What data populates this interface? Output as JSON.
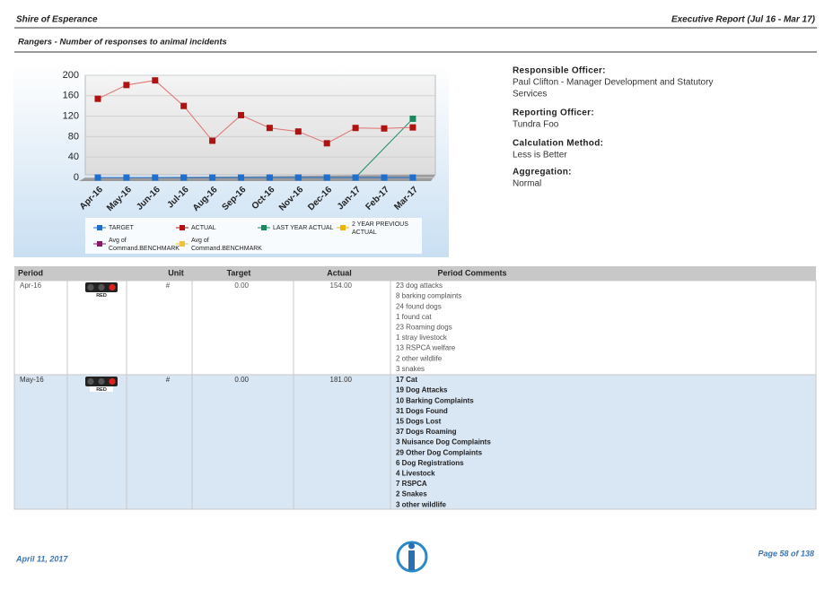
{
  "header": {
    "org": "Shire of Esperance",
    "report": "Executive Report (Jul 16 - Mar 17)",
    "title": "Rangers - Number of responses to animal incidents"
  },
  "chart_data": {
    "type": "line",
    "categories": [
      "Apr-16",
      "May-16",
      "Jun-16",
      "Jul-16",
      "Aug-16",
      "Sep-16",
      "Oct-16",
      "Nov-16",
      "Dec-16",
      "Jan-17",
      "Feb-17",
      "Mar-17"
    ],
    "ylim": [
      0,
      200
    ],
    "yticks": [
      0,
      40,
      80,
      120,
      160,
      200
    ],
    "connect_nulls": true,
    "series": [
      {
        "name": "TARGET",
        "color": "#1f6fd0",
        "values": [
          0,
          0,
          0,
          0,
          0,
          0,
          0,
          0,
          0,
          0,
          0,
          0
        ]
      },
      {
        "name": "ACTUAL",
        "color": "#b01212",
        "values": [
          154,
          181,
          190,
          140,
          72,
          122,
          97,
          90,
          67,
          97,
          96,
          98
        ]
      },
      {
        "name": "LAST YEAR ACTUAL",
        "color": "#1a8a5e",
        "values": [
          null,
          null,
          null,
          0,
          0,
          0,
          0,
          0,
          0,
          0,
          null,
          115
        ]
      },
      {
        "name": "2 YEAR PREVIOUS ACTUAL",
        "color": "#f0b400",
        "values": [
          null,
          null,
          null,
          null,
          null,
          null,
          null,
          null,
          null,
          null,
          null,
          null
        ]
      },
      {
        "name": "Avg of Command.BENCHMARK",
        "color": "#8b1a6b",
        "values": [
          null,
          null,
          null,
          null,
          null,
          null,
          null,
          null,
          null,
          null,
          null,
          null
        ]
      },
      {
        "name": "Avg of Command.BENCHMARK",
        "color": "#f0c040",
        "values": [
          null,
          null,
          null,
          null,
          null,
          null,
          null,
          null,
          null,
          null,
          null,
          null
        ]
      }
    ]
  },
  "info": [
    {
      "label": "Responsible Officer:",
      "value": [
        "Paul Clifton - Manager Development and Statutory",
        "Services"
      ]
    },
    {
      "label": "Reporting Officer:",
      "value": [
        "Tundra Foo"
      ]
    },
    {
      "label": "Calculation Method:",
      "value": [
        "Less is Better"
      ]
    },
    {
      "label": "Aggregation:",
      "value": [
        "Normal"
      ]
    }
  ],
  "table": {
    "columns": [
      "Period",
      "Unit",
      "Target",
      "Actual",
      "Period Comments"
    ],
    "rows": [
      {
        "period": "Apr-16",
        "status": "RED",
        "unit": "#",
        "target": "0.00",
        "actual": "154.00",
        "comments": [
          "23 dog attacks",
          "8 barking complaints",
          "24 found dogs",
          "1 found cat",
          "23 Roaming dogs",
          "1 stray livestock",
          "13 RSPCA welfare",
          "2 other wildlife",
          "3 snakes"
        ]
      },
      {
        "period": "May-16",
        "status": "RED",
        "unit": "#",
        "target": "0.00",
        "actual": "181.00",
        "comments": [
          "17 Cat",
          "19 Dog Attacks",
          "10 Barking Complaints",
          "31 Dogs Found",
          "15 Dogs Lost",
          "37 Dogs Roaming",
          "3 Nuisance Dog Complaints",
          "29 Other Dog Complaints",
          "6 Dog Registrations",
          "4 Livestock",
          "7 RSPCA",
          "2 Snakes",
          "3 other wildlife"
        ]
      }
    ]
  },
  "footer": {
    "date": "April 11, 2017",
    "page": "Page 58 of 138"
  }
}
